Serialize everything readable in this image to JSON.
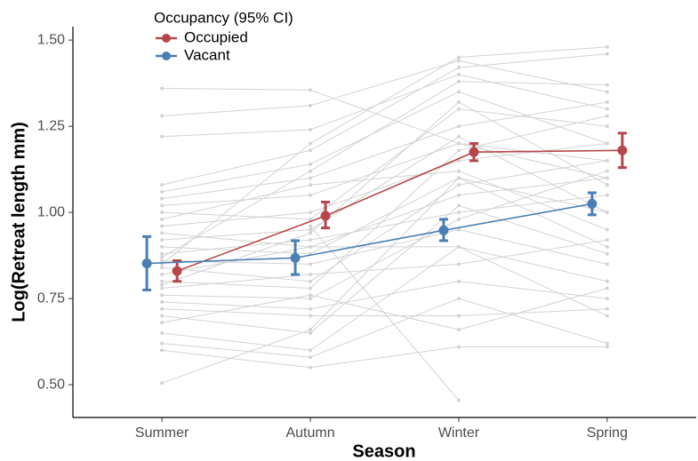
{
  "chart_data": {
    "type": "line",
    "x_label": "Season",
    "y_label": "Log(Retreat length mm)",
    "legend_title": "Occupancy (95% CI)",
    "legend_position": "top-left",
    "categories": [
      "Summer",
      "Autumn",
      "Winter",
      "Spring"
    ],
    "ylim": [
      0.405,
      1.539
    ],
    "yticks": [
      {
        "value": 0.5,
        "label": "0.50"
      },
      0.75,
      {
        "value": 1,
        "label": "1.00"
      },
      1.25,
      {
        "value": 1.5,
        "label": "1.50"
      }
    ],
    "grid": false,
    "series": [
      {
        "name": "Occupied",
        "color": "#b5474c",
        "values": [
          0.83,
          0.99,
          1.175,
          1.18
        ],
        "lower": [
          0.8,
          0.955,
          1.15,
          1.13
        ],
        "upper": [
          0.86,
          1.03,
          1.2,
          1.23
        ]
      },
      {
        "name": "Vacant",
        "color": "#4a7fb5",
        "values": [
          0.852,
          0.868,
          0.948,
          1.025
        ],
        "lower": [
          0.775,
          0.82,
          0.918,
          0.993
        ],
        "upper": [
          0.93,
          0.918,
          0.98,
          1.057
        ]
      }
    ],
    "individuals_color": "#d3d3d3",
    "individuals": [
      [
        1.36,
        1.355,
        1.2,
        1.15
      ],
      [
        1.28,
        1.31,
        1.44,
        1.35
      ],
      [
        1.22,
        1.24,
        1.4,
        1.3
      ],
      [
        1.08,
        1.18,
        1.42,
        1.46
      ],
      [
        1.06,
        1.14,
        1.35,
        1.2
      ],
      [
        1.04,
        1.1,
        1.25,
        1.32
      ],
      [
        1.02,
        1.05,
        1.2,
        1.1
      ],
      [
        1.0,
        0.98,
        1.3,
        1.25
      ],
      [
        0.98,
        1.08,
        1.12,
        0.95
      ],
      [
        0.96,
        1.0,
        1.15,
        1.2
      ],
      [
        0.94,
        0.9,
        1.05,
        1.1
      ],
      [
        0.92,
        0.95,
        1.22,
        1.0
      ],
      [
        0.9,
        0.88,
        1.1,
        0.9
      ],
      [
        0.88,
        0.92,
        1.0,
        1.05
      ],
      [
        0.86,
        0.85,
        0.95,
        0.85
      ],
      [
        0.84,
        0.8,
        1.08,
        1.15
      ],
      [
        0.82,
        0.9,
        0.9,
        0.8
      ],
      [
        0.8,
        0.78,
        1.18,
        1.28
      ],
      [
        0.78,
        0.82,
        0.85,
        0.92
      ],
      [
        0.76,
        0.75,
        0.98,
        1.12
      ],
      [
        0.74,
        0.72,
        0.8,
        0.75
      ],
      [
        0.72,
        0.7,
        0.7,
        0.72
      ],
      [
        0.7,
        0.65,
        1.02,
        0.88
      ],
      [
        0.68,
        0.76,
        0.66,
        0.78
      ],
      [
        0.65,
        0.6,
        0.9,
        0.7
      ],
      [
        0.62,
        0.58,
        0.75,
        0.62
      ],
      [
        0.6,
        0.55,
        0.61,
        0.61
      ],
      [
        0.505,
        0.66,
        1.1,
        1.0
      ],
      [
        0.87,
        1.12,
        1.38,
        1.37
      ],
      [
        0.79,
        0.94,
        1.32,
        1.08
      ],
      [
        null,
        0.96,
        0.455,
        null
      ],
      [
        0.85,
        1.2,
        1.45,
        1.48
      ]
    ]
  }
}
